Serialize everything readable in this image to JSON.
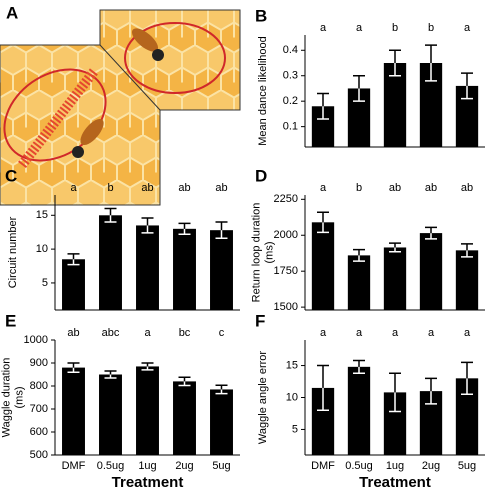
{
  "panel_a": {
    "label": "A"
  },
  "chart_data": [
    {
      "type": "bar",
      "panel": "B",
      "ylabel": [
        "Mean dance likelihood"
      ],
      "categories": [
        null,
        null,
        null,
        null,
        null
      ],
      "values": [
        0.18,
        0.25,
        0.35,
        0.35,
        0.26
      ],
      "errors": [
        0.05,
        0.05,
        0.05,
        0.07,
        0.05
      ],
      "letters": [
        "a",
        "a",
        "b",
        "b",
        "a"
      ],
      "color": "#000000",
      "ylim": [
        0.02,
        0.46
      ],
      "yticks": [
        0.1,
        0.2,
        0.3,
        0.4
      ]
    },
    {
      "type": "bar",
      "panel": "C",
      "ylabel": [
        "Circuit number"
      ],
      "categories": [
        null,
        null,
        null,
        null,
        null
      ],
      "values": [
        8.5,
        15,
        13.5,
        13,
        12.8
      ],
      "errors": [
        0.8,
        1.0,
        1.1,
        0.8,
        1.2
      ],
      "letters": [
        "a",
        "b",
        "ab",
        "ab",
        "ab"
      ],
      "color": "#000000",
      "ylim": [
        1,
        18
      ],
      "yticks": [
        5,
        10,
        15
      ]
    },
    {
      "type": "bar",
      "panel": "D",
      "ylabel": [
        "Return loop duration",
        "(ms)"
      ],
      "categories": [
        null,
        null,
        null,
        null,
        null
      ],
      "values": [
        2090,
        1860,
        1915,
        2015,
        1895
      ],
      "errors": [
        70,
        40,
        30,
        40,
        45
      ],
      "letters": [
        "a",
        "b",
        "ab",
        "ab",
        "ab"
      ],
      "color": "#000000",
      "ylim": [
        1480,
        2280
      ],
      "yticks": [
        1500,
        1750,
        2000,
        2250
      ]
    },
    {
      "type": "bar",
      "panel": "E",
      "ylabel": [
        "Waggle duration",
        "(ms)"
      ],
      "xlabel": "Treatment",
      "categories": [
        "DMF",
        "0.5ug",
        "1ug",
        "2ug",
        "5ug"
      ],
      "values": [
        880,
        850,
        885,
        820,
        785
      ],
      "errors": [
        20,
        15,
        15,
        18,
        18
      ],
      "letters": [
        "ab",
        "abc",
        "a",
        "bc",
        "c"
      ],
      "color": "#000000",
      "ylim": [
        500,
        1000
      ],
      "yticks": [
        500,
        600,
        700,
        800,
        900,
        1000
      ]
    },
    {
      "type": "bar",
      "panel": "F",
      "ylabel": [
        "Waggle angle error"
      ],
      "xlabel": "Treatment",
      "categories": [
        "DMF",
        "0.5ug",
        "1ug",
        "2ug",
        "5ug"
      ],
      "values": [
        11.5,
        14.8,
        10.8,
        11,
        13
      ],
      "errors": [
        3.5,
        1,
        3,
        2,
        2.5
      ],
      "letters": [
        "a",
        "a",
        "a",
        "a",
        "a"
      ],
      "color": "#000000",
      "ylim": [
        1,
        19
      ],
      "yticks": [
        5,
        10,
        15
      ]
    }
  ]
}
